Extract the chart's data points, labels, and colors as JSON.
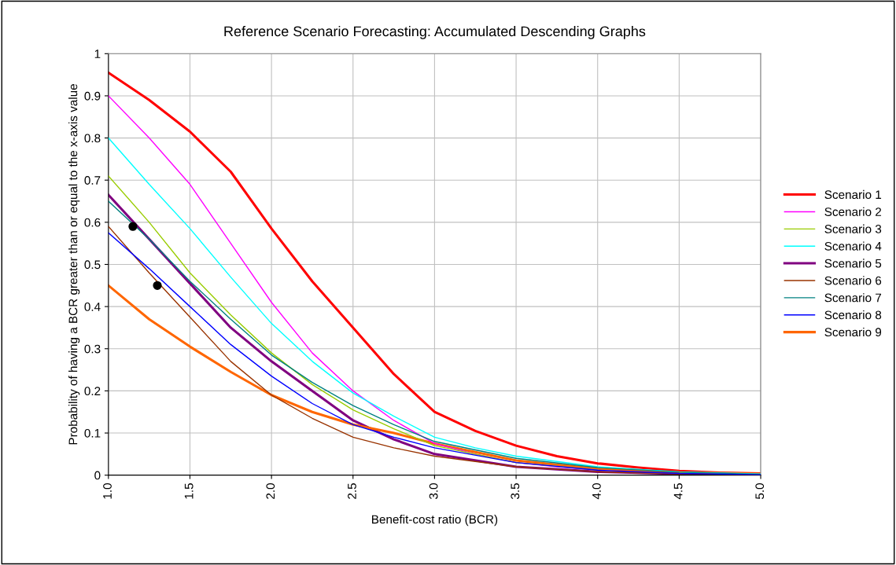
{
  "chart_data": {
    "type": "line",
    "title": "Reference Scenario Forecasting: Accumulated Descending Graphs",
    "xlabel": "Benefit-cost ratio (BCR)",
    "ylabel": "Probability of having a BCR greater than or equal to the x-axis value",
    "xlim": [
      1,
      5
    ],
    "ylim": [
      0,
      1
    ],
    "xticks": [
      {
        "value": 1,
        "label": "1.0"
      },
      {
        "value": 1.5,
        "label": "1.5"
      },
      {
        "value": 2,
        "label": "2.0"
      },
      {
        "value": 2.5,
        "label": "2.5"
      },
      {
        "value": 3,
        "label": "3.0"
      },
      {
        "value": 3.5,
        "label": "3.5"
      },
      {
        "value": 4,
        "label": "4.0"
      },
      {
        "value": 4.5,
        "label": "4.5"
      },
      {
        "value": 5,
        "label": "5.0"
      }
    ],
    "yticks": [
      0,
      0.1,
      0.2,
      0.3,
      0.4,
      0.5,
      0.6,
      0.7,
      0.8,
      0.9,
      1
    ],
    "grid": true,
    "legend": "right",
    "marker": "none",
    "line_style": "solid",
    "series": [
      {
        "name": "Scenario 1",
        "color": "#ff0000",
        "x": [
          1,
          1.25,
          1.5,
          1.75,
          2,
          2.25,
          2.5,
          2.75,
          3,
          3.25,
          3.5,
          3.75,
          4,
          4.25,
          4.5,
          4.75,
          5
        ],
        "values": [
          0.955,
          0.89,
          0.815,
          0.72,
          0.585,
          0.46,
          0.35,
          0.24,
          0.15,
          0.105,
          0.07,
          0.045,
          0.028,
          0.018,
          0.01,
          0.006,
          0.004
        ]
      },
      {
        "name": "Scenario 2",
        "color": "#ff00ff",
        "x": [
          1,
          1.25,
          1.5,
          1.75,
          2,
          2.25,
          2.5,
          2.75,
          3,
          3.25,
          3.5,
          3.75,
          4
        ],
        "values": [
          0.9,
          0.8,
          0.69,
          0.55,
          0.41,
          0.29,
          0.2,
          0.13,
          0.075,
          0.05,
          0.03,
          0.02,
          0.012
        ]
      },
      {
        "name": "Scenario 3",
        "color": "#99cc00",
        "x": [
          1,
          1.25,
          1.5,
          1.75,
          2,
          2.25,
          2.5,
          2.75,
          3,
          3.5,
          4
        ],
        "values": [
          0.71,
          0.6,
          0.48,
          0.38,
          0.29,
          0.215,
          0.155,
          0.11,
          0.07,
          0.03,
          0.012
        ]
      },
      {
        "name": "Scenario 4",
        "color": "#00ffff",
        "x": [
          1,
          1.25,
          1.5,
          1.75,
          2,
          2.25,
          2.5,
          2.75,
          3,
          3.25,
          3.5,
          4,
          4.5,
          5
        ],
        "values": [
          0.8,
          0.69,
          0.585,
          0.47,
          0.36,
          0.27,
          0.195,
          0.14,
          0.09,
          0.065,
          0.045,
          0.02,
          0.008,
          0.003
        ]
      },
      {
        "name": "Scenario 5",
        "color": "#800080",
        "x": [
          1,
          1.25,
          1.5,
          1.75,
          2,
          2.25,
          2.5,
          2.75,
          3,
          3.5,
          4,
          4.5,
          5
        ],
        "values": [
          0.665,
          0.56,
          0.455,
          0.35,
          0.27,
          0.2,
          0.13,
          0.085,
          0.05,
          0.02,
          0.008,
          0.003,
          0.001
        ]
      },
      {
        "name": "Scenario 6",
        "color": "#993300",
        "x": [
          1,
          1.25,
          1.5,
          1.75,
          2,
          2.25,
          2.5,
          2.75,
          3,
          3.5,
          4,
          4.5,
          5
        ],
        "values": [
          0.59,
          0.48,
          0.375,
          0.27,
          0.19,
          0.135,
          0.09,
          0.065,
          0.045,
          0.02,
          0.008,
          0.003,
          0.001
        ]
      },
      {
        "name": "Scenario 7",
        "color": "#008080",
        "x": [
          1,
          1.25,
          1.5,
          1.75,
          2,
          2.25,
          2.5,
          2.75,
          3,
          3.5,
          4,
          4.5,
          5
        ],
        "values": [
          0.65,
          0.56,
          0.46,
          0.37,
          0.285,
          0.22,
          0.165,
          0.12,
          0.08,
          0.04,
          0.018,
          0.007,
          0.002
        ]
      },
      {
        "name": "Scenario 8",
        "color": "#0000ff",
        "x": [
          1,
          1.25,
          1.5,
          1.75,
          2,
          2.25,
          2.5,
          2.75,
          3,
          3.5,
          4,
          4.5,
          5
        ],
        "values": [
          0.575,
          0.49,
          0.4,
          0.31,
          0.235,
          0.17,
          0.12,
          0.09,
          0.065,
          0.03,
          0.012,
          0.004,
          0.001
        ]
      },
      {
        "name": "Scenario 9",
        "color": "#ff6600",
        "x": [
          1,
          1.25,
          1.5,
          1.75,
          2,
          2.25,
          2.5,
          2.75,
          3,
          3.5,
          4,
          4.5,
          5
        ],
        "values": [
          0.45,
          0.37,
          0.305,
          0.245,
          0.19,
          0.15,
          0.12,
          0.1,
          0.075,
          0.035,
          0.015,
          0.007,
          0.003
        ]
      },
      {
        "type": "scatter",
        "color": "#000000",
        "marker": "circle",
        "x": [
          1.15,
          1.3
        ],
        "values": [
          0.59,
          0.45
        ]
      }
    ]
  }
}
